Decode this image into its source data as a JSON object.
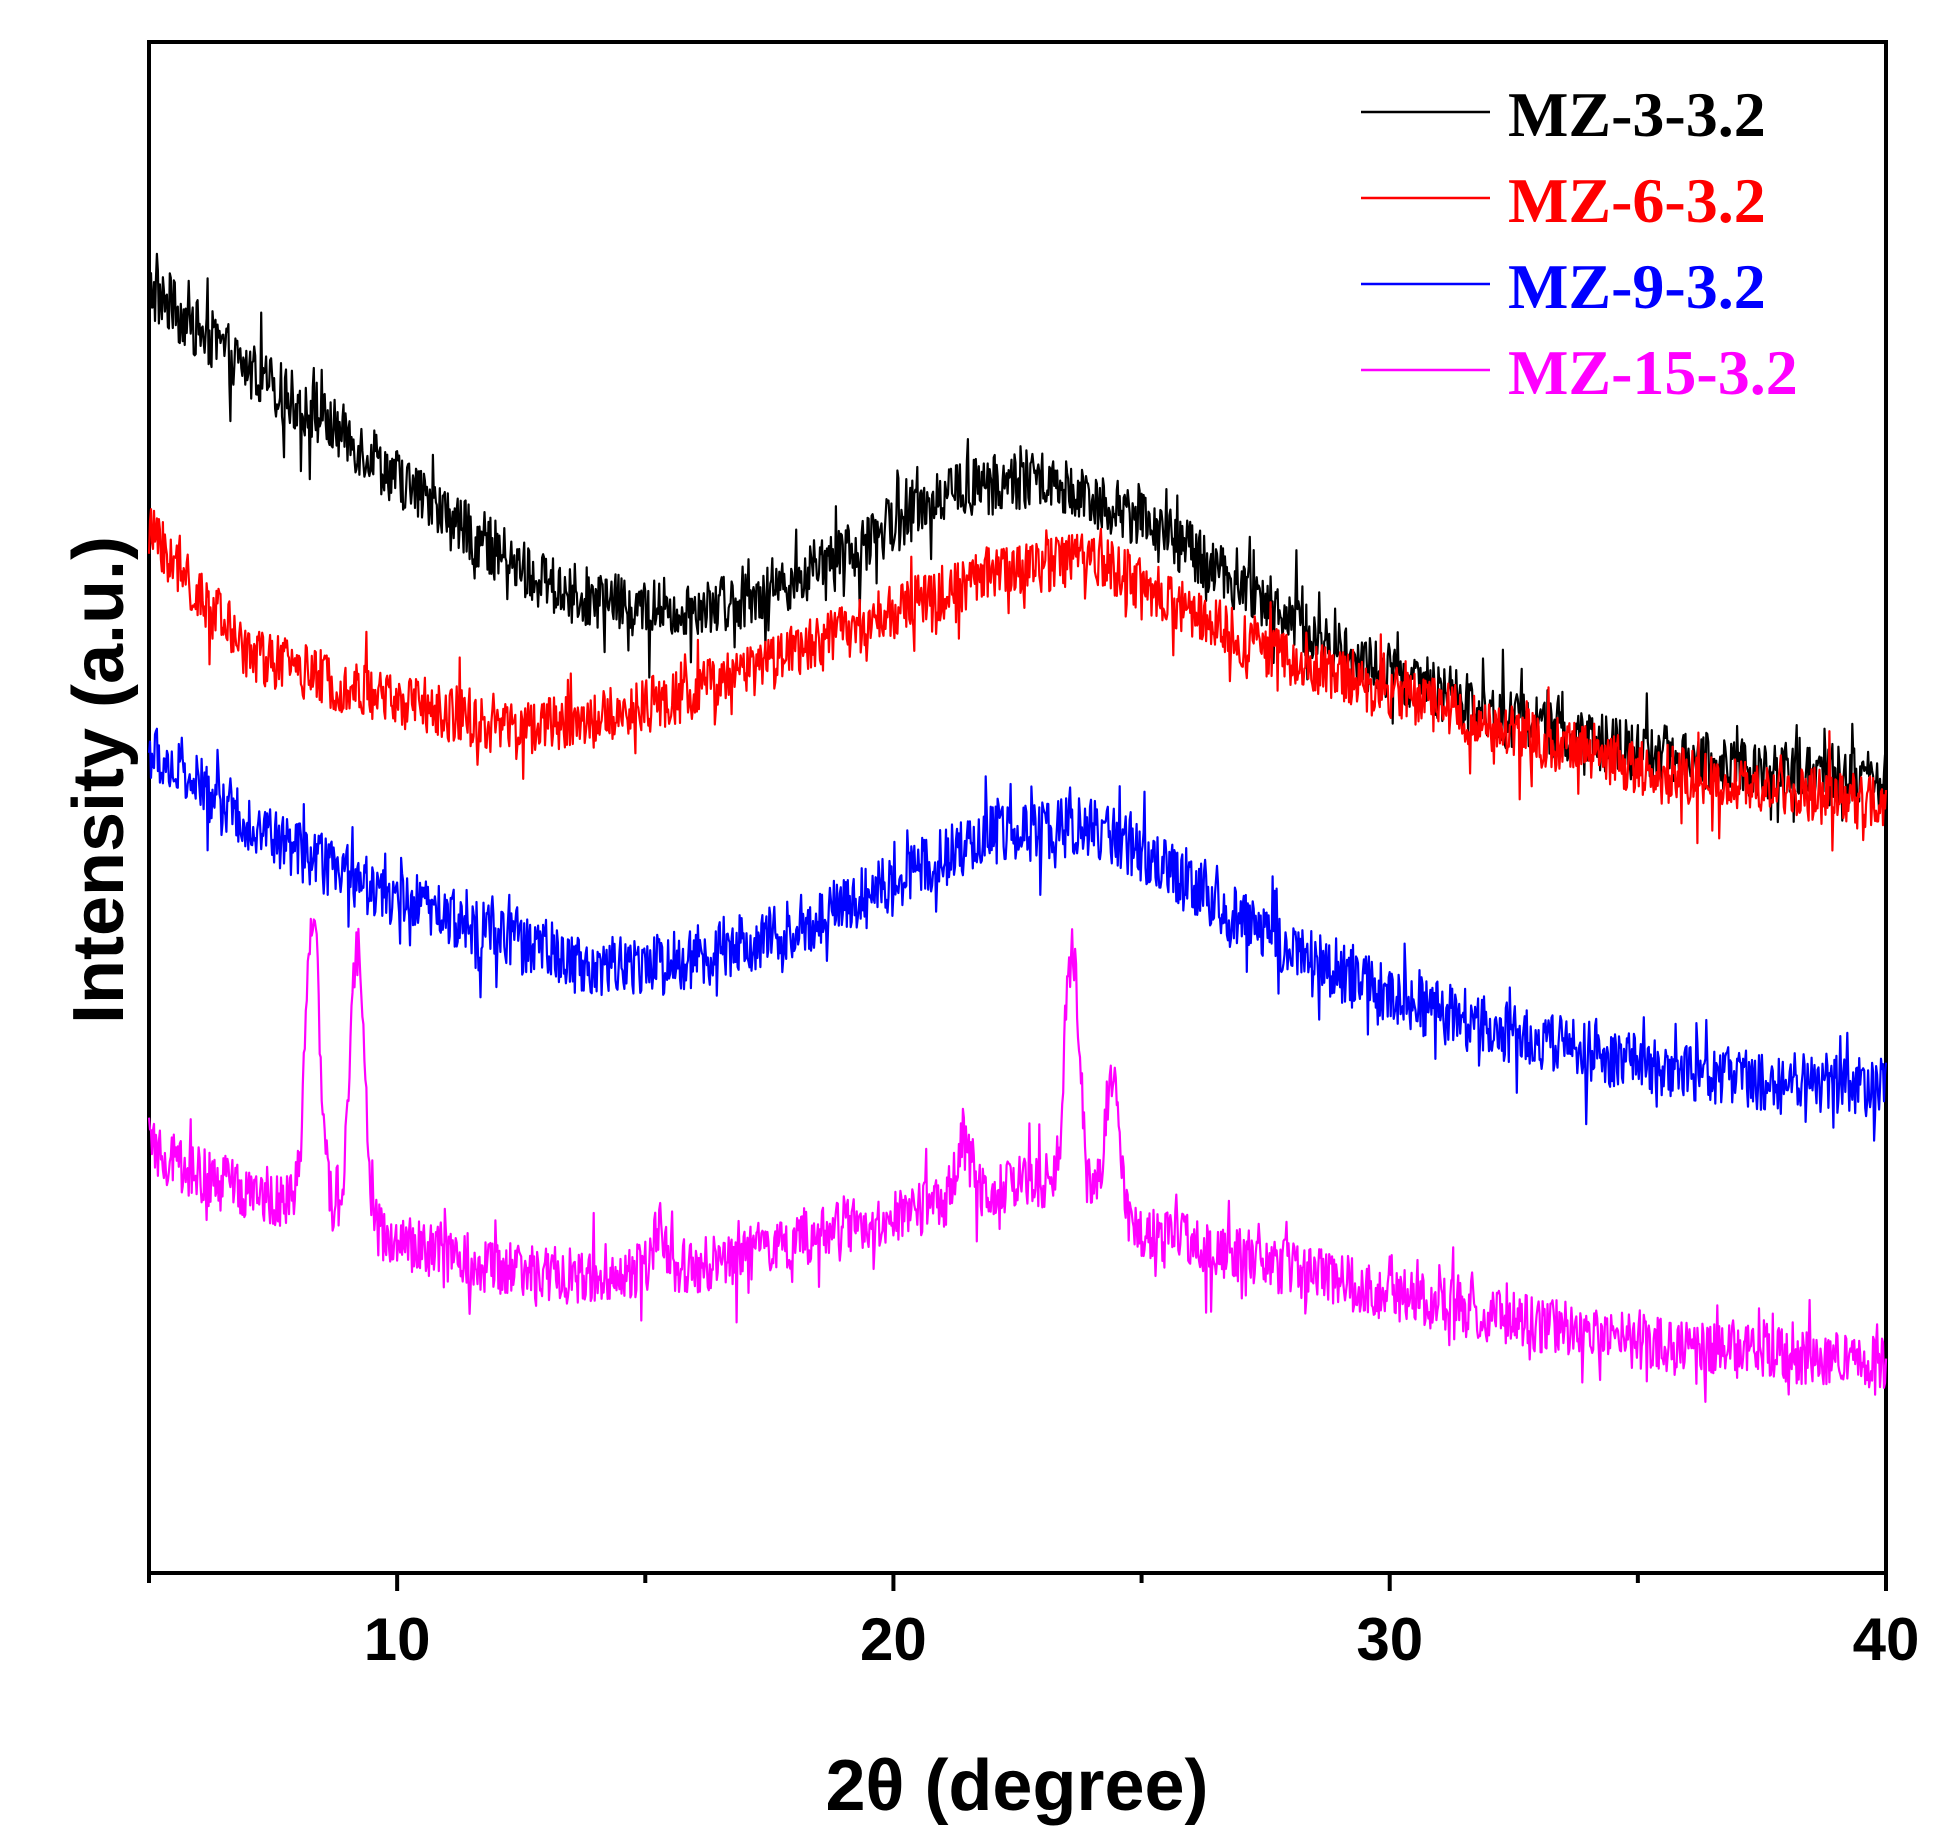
{
  "chart_data": {
    "type": "line",
    "title": "",
    "xlabel": "2θ (degree)",
    "ylabel": "Intensity (a.u.)",
    "xlim": [
      5,
      40
    ],
    "ylim": [
      0,
      5
    ],
    "x_ticks": [
      10,
      20,
      30,
      40
    ],
    "x_tick_labels": [
      "10",
      "20",
      "30",
      "40"
    ],
    "y_ticks_shown": false,
    "grid": false,
    "legend_position": "top-right",
    "note": "Intensities in arbitrary units (normalized, traces vertically offset); each series lists the smoothed baseline plus sharp peaks, noise is rendered procedurally.",
    "series": [
      {
        "name": "MZ-3-3.2",
        "color": "#000000",
        "noise": 0.14,
        "baseline": [
          [
            5,
            4.3
          ],
          [
            7,
            4.0
          ],
          [
            9,
            3.75
          ],
          [
            11,
            3.45
          ],
          [
            13,
            3.2
          ],
          [
            15,
            3.1
          ],
          [
            17,
            3.15
          ],
          [
            19,
            3.3
          ],
          [
            21,
            3.55
          ],
          [
            23,
            3.6
          ],
          [
            25,
            3.45
          ],
          [
            27,
            3.2
          ],
          [
            29,
            2.95
          ],
          [
            31,
            2.8
          ],
          [
            33,
            2.67
          ],
          [
            35,
            2.58
          ],
          [
            37,
            2.52
          ],
          [
            40,
            2.47
          ]
        ],
        "peaks": []
      },
      {
        "name": "MZ-6-3.2",
        "color": "#ff0000",
        "noise": 0.13,
        "baseline": [
          [
            5,
            3.4
          ],
          [
            6,
            3.15
          ],
          [
            7,
            2.95
          ],
          [
            9,
            2.82
          ],
          [
            11,
            2.72
          ],
          [
            12,
            2.66
          ],
          [
            14,
            2.7
          ],
          [
            16,
            2.8
          ],
          [
            18,
            2.95
          ],
          [
            20,
            3.1
          ],
          [
            22,
            3.25
          ],
          [
            24,
            3.3
          ],
          [
            25,
            3.2
          ],
          [
            27,
            3.0
          ],
          [
            29,
            2.85
          ],
          [
            31,
            2.74
          ],
          [
            33,
            2.62
          ],
          [
            35,
            2.52
          ],
          [
            37,
            2.45
          ],
          [
            40,
            2.38
          ]
        ],
        "peaks": []
      },
      {
        "name": "MZ-9-3.2",
        "color": "#0000ff",
        "noise": 0.14,
        "baseline": [
          [
            5,
            2.58
          ],
          [
            6,
            2.45
          ],
          [
            7,
            2.32
          ],
          [
            8,
            2.2
          ],
          [
            9,
            2.12
          ],
          [
            10,
            2.02
          ],
          [
            12,
            1.9
          ],
          [
            14,
            1.78
          ],
          [
            16,
            1.8
          ],
          [
            18,
            1.92
          ],
          [
            20,
            2.1
          ],
          [
            22,
            2.27
          ],
          [
            24,
            2.3
          ],
          [
            25,
            2.2
          ],
          [
            27,
            1.95
          ],
          [
            29,
            1.75
          ],
          [
            31,
            1.6
          ],
          [
            33,
            1.5
          ],
          [
            35,
            1.42
          ],
          [
            37,
            1.36
          ],
          [
            40,
            1.32
          ]
        ],
        "peaks": []
      },
      {
        "name": "MZ-15-3.2",
        "color": "#ff00ff",
        "noise": 0.13,
        "baseline": [
          [
            5,
            1.1
          ],
          [
            6,
            1.0
          ],
          [
            7,
            0.93
          ],
          [
            8,
            0.9
          ],
          [
            9,
            0.86
          ],
          [
            10,
            0.75
          ],
          [
            12,
            0.65
          ],
          [
            14,
            0.62
          ],
          [
            16,
            0.66
          ],
          [
            18,
            0.75
          ],
          [
            20,
            0.85
          ],
          [
            22,
            0.95
          ],
          [
            23,
            0.98
          ],
          [
            24,
            0.9
          ],
          [
            25,
            0.8
          ],
          [
            27,
            0.7
          ],
          [
            29,
            0.6
          ],
          [
            31,
            0.52
          ],
          [
            33,
            0.44
          ],
          [
            35,
            0.38
          ],
          [
            37,
            0.34
          ],
          [
            40,
            0.3
          ]
        ],
        "peaks": [
          [
            8.3,
            1.1
          ],
          [
            9.2,
            1.0
          ],
          [
            15.3,
            0.15
          ],
          [
            21.4,
            0.2
          ],
          [
            23.6,
            0.9
          ],
          [
            24.4,
            0.5
          ]
        ]
      }
    ]
  }
}
